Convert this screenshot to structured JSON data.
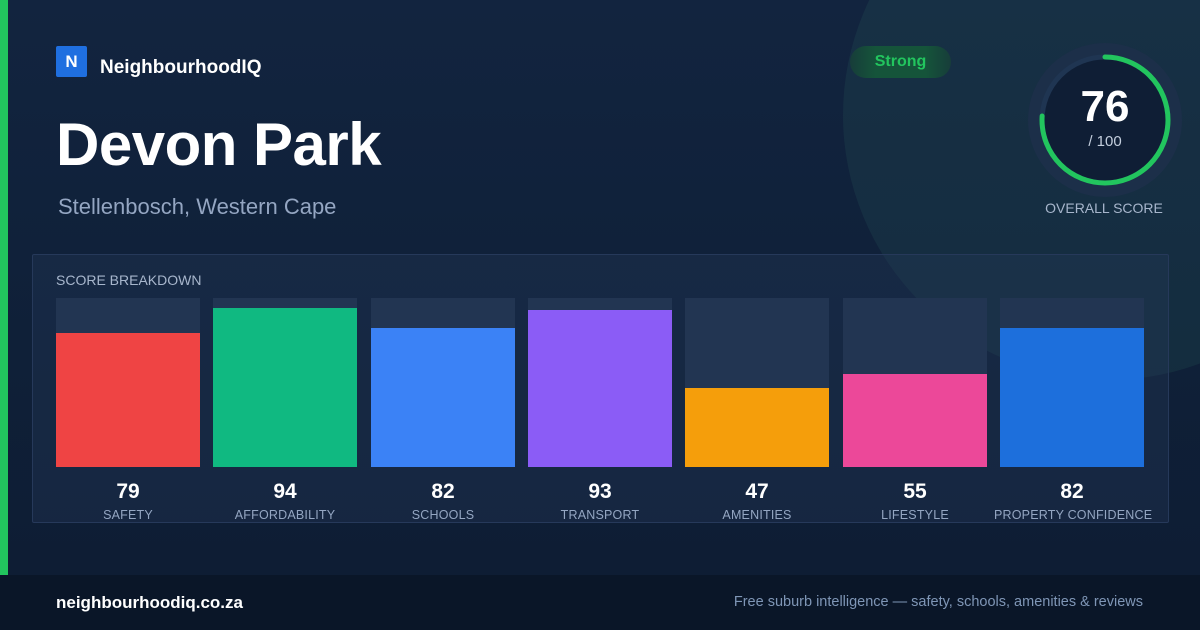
{
  "brand": {
    "logo_letter": "N",
    "name": "NeighbourhoodIQ",
    "accent_color": "#22c55e",
    "logo_color": "#1f6fe0"
  },
  "badge": {
    "label": "Strong"
  },
  "location": {
    "title": "Devon Park",
    "subtitle": "Stellenbosch, Western Cape"
  },
  "overall": {
    "score": "76",
    "max_label": "/ 100",
    "caption": "OVERALL SCORE",
    "fraction": 0.76
  },
  "breakdown": {
    "title": "SCORE BREAKDOWN"
  },
  "chart_data": {
    "type": "bar",
    "categories": [
      "SAFETY",
      "AFFORDABILITY",
      "SCHOOLS",
      "TRANSPORT",
      "AMENITIES",
      "LIFESTYLE",
      "PROPERTY CONFIDENCE"
    ],
    "values": [
      79,
      94,
      82,
      93,
      47,
      55,
      82
    ],
    "colors": [
      "#ef4444",
      "#10b981",
      "#3b82f6",
      "#8b5cf6",
      "#f59e0b",
      "#ec4899",
      "#1d6fdc"
    ],
    "ylim": [
      0,
      100
    ],
    "title": "SCORE BREAKDOWN",
    "xlabel": "",
    "ylabel": "",
    "grid": false,
    "legend": "none"
  },
  "footer": {
    "url": "neighbourhoodiq.co.za",
    "tagline": "Free suburb intelligence — safety, schools, amenities & reviews"
  }
}
